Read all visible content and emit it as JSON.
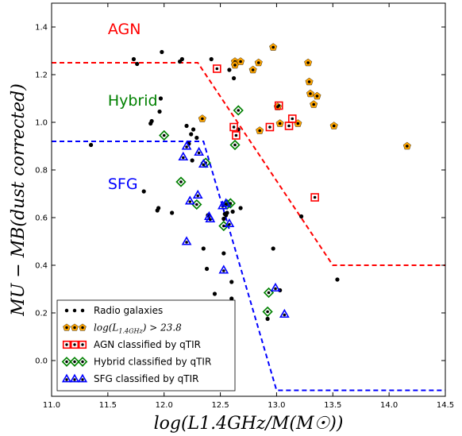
{
  "chart_data": {
    "type": "scatter",
    "xlabel": "log(L1.4GHz/M(M☉))",
    "ylabel": "MU − MB(dust corrected)",
    "xlim": [
      11.0,
      14.5
    ],
    "ylim": [
      -0.15,
      1.5
    ],
    "x_ticks": [
      "11.0",
      "11.5",
      "12.0",
      "12.5",
      "13.0",
      "13.5",
      "14.0",
      "14.5"
    ],
    "y_ticks": [
      "0.0",
      "0.2",
      "0.4",
      "0.6",
      "0.8",
      "1.0",
      "1.2",
      "1.4"
    ],
    "regions": [
      {
        "label": "AGN",
        "color": "#ff0000",
        "x": 11.5,
        "y": 1.37
      },
      {
        "label": "Hybrid",
        "color": "#008000",
        "x": 11.5,
        "y": 1.07
      },
      {
        "label": "SFG",
        "color": "#0000ff",
        "x": 11.5,
        "y": 0.72
      }
    ],
    "boundary_lines": [
      {
        "name": "agn-boundary",
        "color": "#ff0000",
        "points": [
          [
            11.0,
            1.25
          ],
          [
            12.3,
            1.25
          ],
          [
            13.5,
            0.4
          ],
          [
            14.5,
            0.4
          ]
        ]
      },
      {
        "name": "sfg-boundary",
        "color": "#0000ff",
        "points": [
          [
            11.0,
            0.92
          ],
          [
            12.35,
            0.92
          ],
          [
            13.0,
            -0.125
          ],
          [
            14.5,
            -0.125
          ]
        ]
      }
    ],
    "legend": {
      "position": "lower-left",
      "entries": [
        {
          "label": "Radio galaxies",
          "marker": "dot",
          "color": "#000000"
        },
        {
          "label": "log(L1.4GHz) > 23.8",
          "label_parts": [
            "log(L",
            "1.4GHz",
            ") > 23.8"
          ],
          "marker": "pentagon",
          "color": "#ffa500"
        },
        {
          "label": "AGN classified by qTIR",
          "marker": "square",
          "color": "#ff0000"
        },
        {
          "label": "Hybrid classified by qTIR",
          "marker": "diamond",
          "color": "#008000"
        },
        {
          "label": "SFG classified by qTIR",
          "marker": "triangle",
          "color": "#0000ff"
        }
      ]
    },
    "series": [
      {
        "name": "Radio galaxies",
        "marker": "dot",
        "color": "#000000",
        "points": [
          [
            11.35,
            0.905
          ],
          [
            11.73,
            1.265
          ],
          [
            11.76,
            1.245
          ],
          [
            11.82,
            0.71
          ],
          [
            11.88,
            0.995
          ],
          [
            11.89,
            1.005
          ],
          [
            11.94,
            0.63
          ],
          [
            11.95,
            0.64
          ],
          [
            11.96,
            1.045
          ],
          [
            11.97,
            1.1
          ],
          [
            11.98,
            1.295
          ],
          [
            12.07,
            0.62
          ],
          [
            12.14,
            1.255
          ],
          [
            12.16,
            1.265
          ],
          [
            12.2,
            0.985
          ],
          [
            12.22,
            0.91
          ],
          [
            12.24,
            0.95
          ],
          [
            12.25,
            0.84
          ],
          [
            12.26,
            0.97
          ],
          [
            12.29,
            0.935
          ],
          [
            12.35,
            0.47
          ],
          [
            12.38,
            0.385
          ],
          [
            12.39,
            0.61
          ],
          [
            12.42,
            1.265
          ],
          [
            12.45,
            0.28
          ],
          [
            12.53,
            0.45
          ],
          [
            12.53,
            0.595
          ],
          [
            12.54,
            0.615
          ],
          [
            12.55,
            0.61
          ],
          [
            12.56,
            0.62
          ],
          [
            12.58,
            1.22
          ],
          [
            12.6,
            0.26
          ],
          [
            12.6,
            0.33
          ],
          [
            12.61,
            0.625
          ],
          [
            12.62,
            1.185
          ],
          [
            12.66,
            0.97
          ],
          [
            12.68,
            0.64
          ],
          [
            12.92,
            0.175
          ],
          [
            12.97,
            0.47
          ],
          [
            13.03,
            0.295
          ],
          [
            13.22,
            0.605
          ],
          [
            13.54,
            0.34
          ]
        ]
      },
      {
        "name": "log(L1.4GHz) > 23.8",
        "marker": "pentagon",
        "color": "#ffa500",
        "points": [
          [
            12.34,
            1.015
          ],
          [
            12.63,
            1.255
          ],
          [
            12.63,
            1.24
          ],
          [
            12.68,
            1.255
          ],
          [
            12.79,
            1.22
          ],
          [
            12.84,
            1.25
          ],
          [
            12.85,
            0.965
          ],
          [
            12.97,
            1.315
          ],
          [
            13.01,
            1.065
          ],
          [
            13.03,
            0.995
          ],
          [
            13.19,
            0.995
          ],
          [
            13.28,
            1.25
          ],
          [
            13.29,
            1.17
          ],
          [
            13.3,
            1.12
          ],
          [
            13.33,
            1.075
          ],
          [
            13.36,
            1.11
          ],
          [
            13.51,
            0.985
          ],
          [
            14.16,
            0.9
          ]
        ]
      },
      {
        "name": "AGN classified by qTIR",
        "marker": "square",
        "color": "#ff0000",
        "points": [
          [
            12.47,
            1.225
          ],
          [
            12.62,
            0.98
          ],
          [
            12.64,
            0.945
          ],
          [
            12.94,
            0.98
          ],
          [
            13.02,
            1.07
          ],
          [
            13.11,
            0.985
          ],
          [
            13.14,
            1.015
          ],
          [
            13.34,
            0.685
          ]
        ]
      },
      {
        "name": "Hybrid classified by qTIR",
        "marker": "diamond",
        "color": "#008000",
        "points": [
          [
            12.0,
            0.945
          ],
          [
            12.15,
            0.75
          ],
          [
            12.29,
            0.655
          ],
          [
            12.37,
            0.83
          ],
          [
            12.53,
            0.565
          ],
          [
            12.56,
            0.655
          ],
          [
            12.59,
            0.66
          ],
          [
            12.63,
            0.905
          ],
          [
            12.66,
            1.05
          ],
          [
            12.92,
            0.205
          ],
          [
            12.93,
            0.285
          ]
        ]
      },
      {
        "name": "SFG classified by qTIR",
        "marker": "triangle",
        "color": "#0000ff",
        "points": [
          [
            12.17,
            0.855
          ],
          [
            12.2,
            0.9
          ],
          [
            12.2,
            0.5
          ],
          [
            12.23,
            0.67
          ],
          [
            12.3,
            0.695
          ],
          [
            12.31,
            0.875
          ],
          [
            12.35,
            0.825
          ],
          [
            12.4,
            0.605
          ],
          [
            12.41,
            0.595
          ],
          [
            12.52,
            0.65
          ],
          [
            12.53,
            0.38
          ],
          [
            12.55,
            0.66
          ],
          [
            12.58,
            0.575
          ],
          [
            12.99,
            0.305
          ],
          [
            13.07,
            0.195
          ]
        ]
      }
    ]
  }
}
